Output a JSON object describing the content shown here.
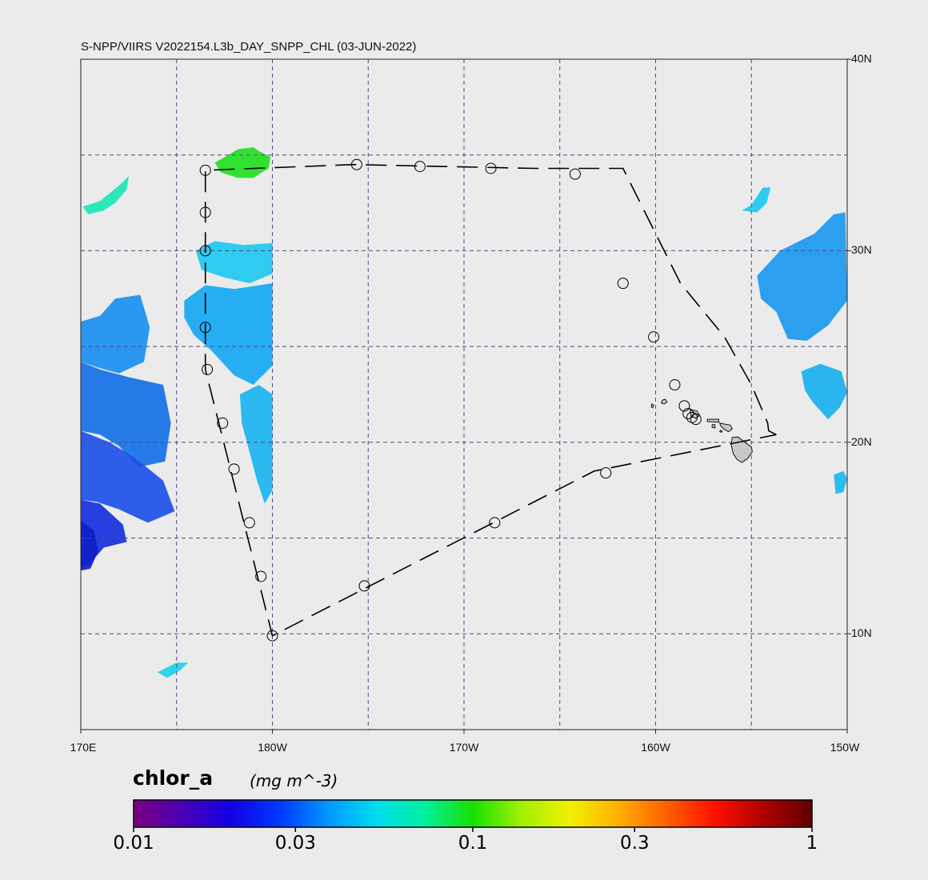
{
  "title": "S-NPP/VIIRS V2022154.L3b_DAY_SNPP_CHL (03-JUN-2022)",
  "map": {
    "lon_range": [
      170,
      210
    ],
    "lat_range": [
      5,
      40
    ],
    "lat_labels": [
      {
        "lat": 40,
        "text": "40N"
      },
      {
        "lat": 30,
        "text": "30N"
      },
      {
        "lat": 20,
        "text": "20N"
      },
      {
        "lat": 10,
        "text": "10N"
      }
    ],
    "lon_labels": [
      {
        "lon": 170,
        "text": "170E"
      },
      {
        "lon": 180,
        "text": "180W"
      },
      {
        "lon": 190,
        "text": "170W"
      },
      {
        "lon": 200,
        "text": "160W"
      },
      {
        "lon": 210,
        "text": "150W"
      }
    ],
    "grid_lons": [
      175,
      180,
      185,
      190,
      195,
      200,
      205
    ],
    "grid_lats": [
      10,
      15,
      20,
      25,
      30,
      35
    ],
    "background_color": "#ebebeb",
    "grid_color": "#4a4a8a",
    "track_color": "#000000",
    "land_color": "#c8c8c8"
  },
  "cruise_track": {
    "path": [
      [
        206.3,
        20.4
      ],
      [
        205.9,
        20.6
      ],
      [
        205.85,
        21.0
      ],
      [
        205.6,
        21.6
      ],
      [
        205.0,
        23.0
      ],
      [
        203.6,
        25.5
      ],
      [
        201.3,
        28.3
      ],
      [
        198.3,
        34.3
      ],
      [
        193.7,
        34.3
      ],
      [
        184.2,
        34.5
      ],
      [
        176.5,
        34.2
      ],
      [
        176.5,
        23.8
      ],
      [
        180.0,
        9.9
      ],
      [
        196.8,
        18.5
      ],
      [
        206.3,
        20.4
      ]
    ],
    "stations": [
      [
        176.5,
        34.2
      ],
      [
        176.5,
        32.0
      ],
      [
        176.5,
        30.0
      ],
      [
        176.5,
        26.0
      ],
      [
        176.6,
        23.8
      ],
      [
        177.4,
        21.0
      ],
      [
        178.0,
        18.6
      ],
      [
        178.8,
        15.8
      ],
      [
        179.4,
        13.0
      ],
      [
        180.0,
        9.9
      ],
      [
        184.8,
        12.5
      ],
      [
        191.6,
        15.8
      ],
      [
        197.4,
        18.4
      ],
      [
        184.4,
        34.5
      ],
      [
        187.7,
        34.4
      ],
      [
        191.4,
        34.3
      ],
      [
        195.8,
        34.0
      ],
      [
        198.3,
        28.3
      ],
      [
        199.9,
        25.5
      ],
      [
        201.0,
        23.0
      ],
      [
        201.5,
        21.9
      ],
      [
        201.7,
        21.5
      ],
      [
        201.9,
        21.3
      ],
      [
        202.1,
        21.2
      ]
    ]
  },
  "islands": [
    {
      "name": "Kauai",
      "points": [
        [
          200.35,
          22.2
        ],
        [
          200.5,
          22.25
        ],
        [
          200.6,
          22.1
        ],
        [
          200.45,
          22.0
        ],
        [
          200.3,
          22.05
        ]
      ]
    },
    {
      "name": "Niihau",
      "points": [
        [
          199.8,
          22.0
        ],
        [
          199.9,
          21.95
        ],
        [
          199.85,
          21.8
        ],
        [
          199.78,
          21.85
        ]
      ]
    },
    {
      "name": "Oahu",
      "points": [
        [
          201.8,
          21.7
        ],
        [
          202.15,
          21.65
        ],
        [
          202.3,
          21.4
        ],
        [
          202.1,
          21.25
        ],
        [
          201.85,
          21.35
        ]
      ]
    },
    {
      "name": "Molokai",
      "points": [
        [
          202.7,
          21.2
        ],
        [
          203.3,
          21.2
        ],
        [
          203.3,
          21.05
        ],
        [
          202.7,
          21.08
        ]
      ]
    },
    {
      "name": "Lanai",
      "points": [
        [
          202.95,
          20.92
        ],
        [
          203.1,
          20.92
        ],
        [
          203.1,
          20.75
        ],
        [
          202.95,
          20.78
        ]
      ]
    },
    {
      "name": "Maui",
      "points": [
        [
          203.35,
          21.0
        ],
        [
          203.6,
          20.95
        ],
        [
          203.9,
          20.9
        ],
        [
          204.0,
          20.7
        ],
        [
          203.8,
          20.55
        ],
        [
          203.55,
          20.7
        ],
        [
          203.4,
          20.85
        ]
      ]
    },
    {
      "name": "Kahoolawe",
      "points": [
        [
          203.38,
          20.62
        ],
        [
          203.48,
          20.6
        ],
        [
          203.45,
          20.52
        ],
        [
          203.35,
          20.55
        ]
      ]
    },
    {
      "name": "Hawaii",
      "points": [
        [
          204.0,
          20.25
        ],
        [
          204.3,
          20.28
        ],
        [
          204.6,
          20.05
        ],
        [
          205.0,
          19.75
        ],
        [
          205.05,
          19.5
        ],
        [
          204.8,
          19.15
        ],
        [
          204.5,
          18.95
        ],
        [
          204.25,
          19.1
        ],
        [
          204.05,
          19.4
        ],
        [
          203.95,
          19.85
        ]
      ]
    }
  ],
  "chl_patches": [
    {
      "color": "#22e01f",
      "points": [
        [
          177.0,
          34.6
        ],
        [
          177.7,
          35.0
        ],
        [
          178.2,
          35.3
        ],
        [
          179.0,
          35.4
        ],
        [
          179.3,
          35.2
        ],
        [
          179.9,
          34.9
        ],
        [
          179.8,
          34.3
        ],
        [
          179.0,
          33.8
        ],
        [
          178.2,
          33.8
        ],
        [
          177.3,
          34.1
        ]
      ]
    },
    {
      "color": "#1ae6b5",
      "points": [
        [
          170.1,
          32.3
        ],
        [
          171.0,
          32.6
        ],
        [
          172.0,
          33.4
        ],
        [
          172.5,
          33.9
        ],
        [
          172.4,
          33.2
        ],
        [
          171.8,
          32.5
        ],
        [
          171.2,
          32.1
        ],
        [
          170.4,
          31.9
        ]
      ]
    },
    {
      "color": "#1ec8f0",
      "points": [
        [
          176.0,
          30.0
        ],
        [
          177.0,
          30.5
        ],
        [
          178.5,
          30.3
        ],
        [
          180.0,
          30.4
        ],
        [
          180.0,
          28.8
        ],
        [
          178.8,
          28.3
        ],
        [
          177.5,
          28.6
        ],
        [
          176.3,
          29.0
        ]
      ]
    },
    {
      "color": "#16a8f2",
      "points": [
        [
          175.4,
          27.4
        ],
        [
          176.5,
          28.2
        ],
        [
          178.0,
          28.0
        ],
        [
          180.0,
          28.3
        ],
        [
          180.0,
          24.0
        ],
        [
          179.0,
          23.0
        ],
        [
          178.0,
          23.5
        ],
        [
          176.8,
          24.8
        ],
        [
          175.9,
          25.6
        ],
        [
          175.4,
          26.5
        ]
      ]
    },
    {
      "color": "#1ab4ef",
      "points": [
        [
          178.3,
          22.5
        ],
        [
          179.3,
          23.0
        ],
        [
          180.0,
          22.5
        ],
        [
          180.0,
          17.5
        ],
        [
          179.6,
          16.8
        ],
        [
          179.2,
          18.0
        ],
        [
          178.8,
          19.5
        ],
        [
          178.4,
          21.0
        ]
      ]
    },
    {
      "color": "#1b8ff0",
      "points": [
        [
          170.0,
          26.3
        ],
        [
          171.0,
          26.6
        ],
        [
          171.8,
          27.5
        ],
        [
          173.1,
          27.7
        ],
        [
          173.6,
          26.0
        ],
        [
          173.3,
          24.2
        ],
        [
          172.0,
          23.6
        ],
        [
          170.9,
          23.9
        ],
        [
          170.0,
          24.2
        ]
      ]
    },
    {
      "color": "#1570e6",
      "points": [
        [
          170.0,
          24.2
        ],
        [
          171.0,
          23.8
        ],
        [
          172.5,
          23.4
        ],
        [
          174.3,
          23.0
        ],
        [
          174.7,
          21.0
        ],
        [
          174.4,
          19.0
        ],
        [
          173.0,
          18.7
        ],
        [
          172.0,
          19.8
        ],
        [
          171.0,
          20.4
        ],
        [
          170.0,
          20.6
        ]
      ]
    },
    {
      "color": "#1d50e8",
      "points": [
        [
          170.0,
          20.6
        ],
        [
          171.5,
          20.0
        ],
        [
          172.8,
          19.2
        ],
        [
          174.3,
          18.0
        ],
        [
          174.9,
          16.4
        ],
        [
          173.5,
          15.8
        ],
        [
          172.0,
          16.5
        ],
        [
          170.8,
          16.9
        ],
        [
          170.0,
          17.0
        ]
      ]
    },
    {
      "color": "#1530dc",
      "points": [
        [
          170.0,
          17.0
        ],
        [
          171.0,
          16.8
        ],
        [
          172.2,
          15.7
        ],
        [
          172.4,
          14.8
        ],
        [
          171.2,
          14.5
        ],
        [
          170.5,
          13.7
        ],
        [
          170.0,
          13.4
        ]
      ]
    },
    {
      "color": "#0f20c8",
      "points": [
        [
          170.0,
          15.9
        ],
        [
          170.7,
          15.4
        ],
        [
          170.9,
          14.3
        ],
        [
          170.5,
          13.4
        ],
        [
          170.0,
          13.3
        ]
      ]
    },
    {
      "color": "#1ed0e8",
      "points": [
        [
          174.0,
          8.0
        ],
        [
          175.0,
          8.5
        ],
        [
          175.6,
          8.5
        ],
        [
          175.2,
          8.1
        ],
        [
          174.5,
          7.7
        ]
      ]
    },
    {
      "color": "#1a98f0",
      "points": [
        [
          205.3,
          28.7
        ],
        [
          206.5,
          30.0
        ],
        [
          208.3,
          30.9
        ],
        [
          209.3,
          31.9
        ],
        [
          209.9,
          32.0
        ],
        [
          210.0,
          27.4
        ],
        [
          209.0,
          26.1
        ],
        [
          207.9,
          25.3
        ],
        [
          206.9,
          25.4
        ],
        [
          206.3,
          26.8
        ],
        [
          205.5,
          27.5
        ]
      ]
    },
    {
      "color": "#1ec8f0",
      "points": [
        [
          204.5,
          32.1
        ],
        [
          205.0,
          32.4
        ],
        [
          205.6,
          33.3
        ],
        [
          206.0,
          33.3
        ],
        [
          205.8,
          32.5
        ],
        [
          205.3,
          32.0
        ]
      ]
    },
    {
      "color": "#1ab0ef",
      "points": [
        [
          207.6,
          23.7
        ],
        [
          208.6,
          24.1
        ],
        [
          209.7,
          23.7
        ],
        [
          210.0,
          22.6
        ],
        [
          209.6,
          21.8
        ],
        [
          209.0,
          21.2
        ],
        [
          208.2,
          22.1
        ],
        [
          207.8,
          22.7
        ]
      ]
    },
    {
      "color": "#1ab8ef",
      "points": [
        [
          209.3,
          18.3
        ],
        [
          209.8,
          18.5
        ],
        [
          210.0,
          18.1
        ],
        [
          209.8,
          17.4
        ],
        [
          209.4,
          17.3
        ]
      ]
    }
  ],
  "colorbar": {
    "title": "chlor_a",
    "units": "(mg m^-3)",
    "scale": "log",
    "range": [
      0.01,
      1
    ],
    "ticks": [
      {
        "value": 0.01,
        "label": "0.01"
      },
      {
        "value": 0.03,
        "label": "0.03"
      },
      {
        "value": 0.1,
        "label": "0.1"
      },
      {
        "value": 0.3,
        "label": "0.3"
      },
      {
        "value": 1,
        "label": "1"
      }
    ],
    "colors": [
      "#7a0080",
      "#4b00b5",
      "#1200e6",
      "#0038ff",
      "#0096ff",
      "#00dcf0",
      "#00f0a0",
      "#18e000",
      "#a0f000",
      "#f0f000",
      "#ffb000",
      "#ff6000",
      "#ff1000",
      "#b00000",
      "#600000"
    ]
  }
}
